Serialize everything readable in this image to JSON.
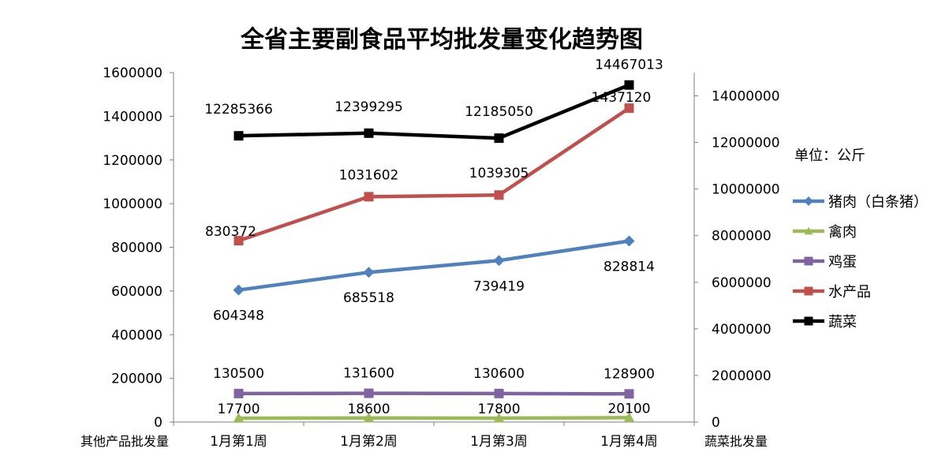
{
  "chart_data": {
    "type": "line",
    "title": "全省主要副食品平均批发量变化趋势图",
    "unit_note": "单位：公斤",
    "categories": [
      "1月第1周",
      "1月第2周",
      "1月第3周",
      "1月第4周"
    ],
    "left_axis": {
      "label": "其他产品批发量",
      "ylim": [
        0,
        1600000
      ],
      "ticks": [
        "0",
        "200000",
        "400000",
        "600000",
        "800000",
        "1000000",
        "1200000",
        "1400000",
        "1600000"
      ]
    },
    "right_axis": {
      "label": "蔬菜批发量",
      "ylim": [
        0,
        15000000
      ],
      "ticks": [
        "0",
        "2000000",
        "4000000",
        "6000000",
        "8000000",
        "10000000",
        "12000000",
        "14000000"
      ]
    },
    "series": [
      {
        "name": "猪肉（白条猪）",
        "color": "#4F81BD",
        "marker": "diamond",
        "axis": "left",
        "values": [
          604348,
          685518,
          739419,
          828814
        ],
        "labels": [
          "604348",
          "685518",
          "739419",
          "828814"
        ]
      },
      {
        "name": "禽肉",
        "color": "#9BBB59",
        "marker": "triangle",
        "axis": "left",
        "values": [
          17700,
          18600,
          17800,
          20100
        ],
        "labels": [
          "17700",
          "18600",
          "17800",
          "20100"
        ]
      },
      {
        "name": "鸡蛋",
        "color": "#8064A2",
        "marker": "square",
        "axis": "left",
        "values": [
          130500,
          131600,
          130600,
          128900
        ],
        "labels": [
          "130500",
          "131600",
          "130600",
          "128900"
        ]
      },
      {
        "name": "水产品",
        "color": "#C0504D",
        "marker": "square",
        "axis": "left",
        "values": [
          830372,
          1031602,
          1039305,
          1437120
        ],
        "labels": [
          "830372",
          "1031602",
          "1039305",
          "1437120"
        ]
      },
      {
        "name": "蔬菜",
        "color": "#000000",
        "marker": "square",
        "axis": "right",
        "values": [
          12285366,
          12399295,
          12185050,
          14467013
        ],
        "labels": [
          "12285366",
          "12399295",
          "12185050",
          "14467013"
        ]
      }
    ],
    "legend_position": "right",
    "grid": false
  }
}
